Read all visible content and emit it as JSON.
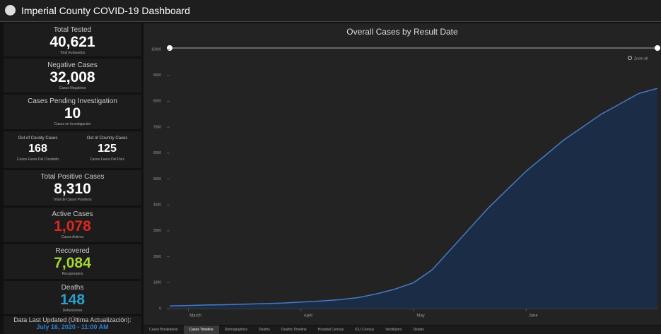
{
  "header": {
    "title": "Imperial County COVID-19 Dashboard"
  },
  "cards": [
    {
      "title": "Total Tested",
      "value": "40,621",
      "subtitle": "Total Evaluados",
      "value_color": "#ffffff"
    },
    {
      "title": "Negative Cases",
      "value": "32,008",
      "subtitle": "Casos Negativos",
      "value_color": "#ffffff"
    },
    {
      "title": "Cases Pending Investigation",
      "value": "10",
      "subtitle": "Casos en Investigación",
      "value_color": "#ffffff"
    },
    {
      "items": [
        {
          "title": "Out of County Cases",
          "value": "168",
          "subtitle": "Casos Fuera Del Condado"
        },
        {
          "title": "Out of Country Cases",
          "value": "125",
          "subtitle": "Casos Fuera Del País"
        }
      ]
    },
    {
      "title": "Total Positive Cases",
      "value": "8,310",
      "subtitle": "Total de Casos Positivos",
      "value_color": "#ffffff"
    },
    {
      "title": "Active Cases",
      "value": "1,078",
      "subtitle": "Casos Activos",
      "value_color": "#e0271f"
    },
    {
      "title": "Recovered",
      "value": "7,084",
      "subtitle": "Recuperados",
      "value_color": "#a5d631"
    },
    {
      "title": "Deaths",
      "value": "148",
      "subtitle": "Defunciones",
      "value_color": "#2a9fc9"
    }
  ],
  "updated": {
    "label": "Data Last Updated (Última Actualización):",
    "value": "July 16, 2020 - 11:00 AM"
  },
  "tabs": [
    "Cases Breakdown",
    "Cases Timeline",
    "Demographics",
    "Deaths",
    "Deaths Timeline",
    "Hospital Census",
    "ICU Census",
    "Ventilators",
    "Details"
  ],
  "chart_data": {
    "type": "area",
    "title": "Overall Cases by Result Date",
    "zoom_label": "Zoom all",
    "categories": [
      null,
      "March",
      null,
      null,
      null,
      null,
      null,
      "April",
      null,
      null,
      null,
      null,
      null,
      "May",
      null,
      null,
      null,
      null,
      null,
      "June",
      null,
      null,
      null,
      null,
      null,
      null,
      null
    ],
    "values": [
      100,
      120,
      140,
      150,
      170,
      190,
      210,
      250,
      290,
      340,
      420,
      560,
      750,
      1000,
      1500,
      2300,
      3100,
      3900,
      4600,
      5300,
      5900,
      6500,
      7000,
      7500,
      7900,
      8300,
      8500
    ],
    "color": "#4a78c0",
    "fill": "#1b2c47",
    "ylim": [
      0,
      10000
    ],
    "yticks": [
      0,
      1000,
      2000,
      3000,
      4000,
      5000,
      6000,
      7000,
      8000,
      9000,
      10000
    ],
    "grid": false
  }
}
